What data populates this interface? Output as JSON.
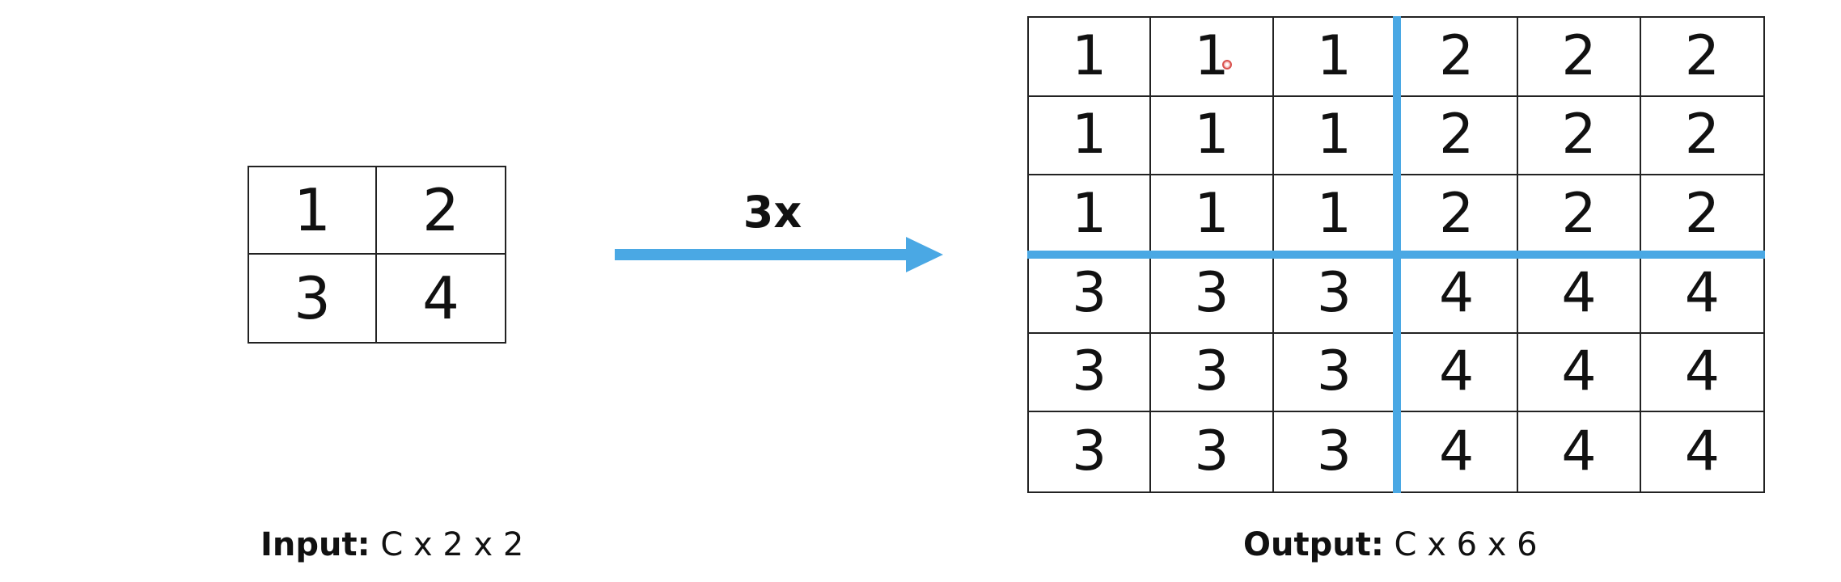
{
  "input": {
    "cells": [
      "1",
      "2",
      "3",
      "4"
    ],
    "caption_label": "Input:",
    "caption_value": "C x 2 x 2"
  },
  "arrow": {
    "label": "3x"
  },
  "output": {
    "cells": [
      "1",
      "1",
      "1",
      "2",
      "2",
      "2",
      "1",
      "1",
      "1",
      "2",
      "2",
      "2",
      "1",
      "1",
      "1",
      "2",
      "2",
      "2",
      "3",
      "3",
      "3",
      "4",
      "4",
      "4",
      "3",
      "3",
      "3",
      "4",
      "4",
      "4",
      "3",
      "3",
      "3",
      "4",
      "4",
      "4"
    ],
    "caption_label": "Output:",
    "caption_value": "C x 6 x 6"
  },
  "colors": {
    "accent": "#4aa8e4",
    "grid_line": "#222222"
  }
}
